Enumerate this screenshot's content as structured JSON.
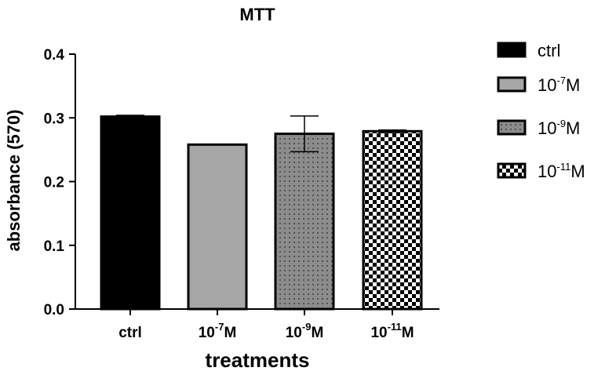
{
  "chart_data": {
    "type": "bar",
    "title": "MTT",
    "xlabel": "treatments",
    "ylabel": "absorbance (570)",
    "ylim": [
      0,
      0.4
    ],
    "yticks": [
      "0.0",
      "0.1",
      "0.2",
      "0.3",
      "0.4"
    ],
    "categories": [
      {
        "base": "ctrl",
        "sup": "",
        "unit": ""
      },
      {
        "base": "10",
        "sup": "-7",
        "unit": "M"
      },
      {
        "base": "10",
        "sup": "-9",
        "unit": "M"
      },
      {
        "base": "10",
        "sup": "-11",
        "unit": "M"
      }
    ],
    "values": [
      0.302,
      0.258,
      0.275,
      0.279
    ],
    "errors": [
      0.002,
      0.0,
      0.028,
      0.002
    ],
    "fills": [
      "solid-black",
      "solid-gray",
      "dotted-gray",
      "checkerboard"
    ],
    "legend": [
      {
        "base": "ctrl",
        "sup": "",
        "unit": ""
      },
      {
        "base": "10",
        "sup": "-7",
        "unit": "M"
      },
      {
        "base": "10",
        "sup": "-9",
        "unit": "M"
      },
      {
        "base": "10",
        "sup": "-11",
        "unit": "M"
      }
    ],
    "legend_position": "right"
  }
}
